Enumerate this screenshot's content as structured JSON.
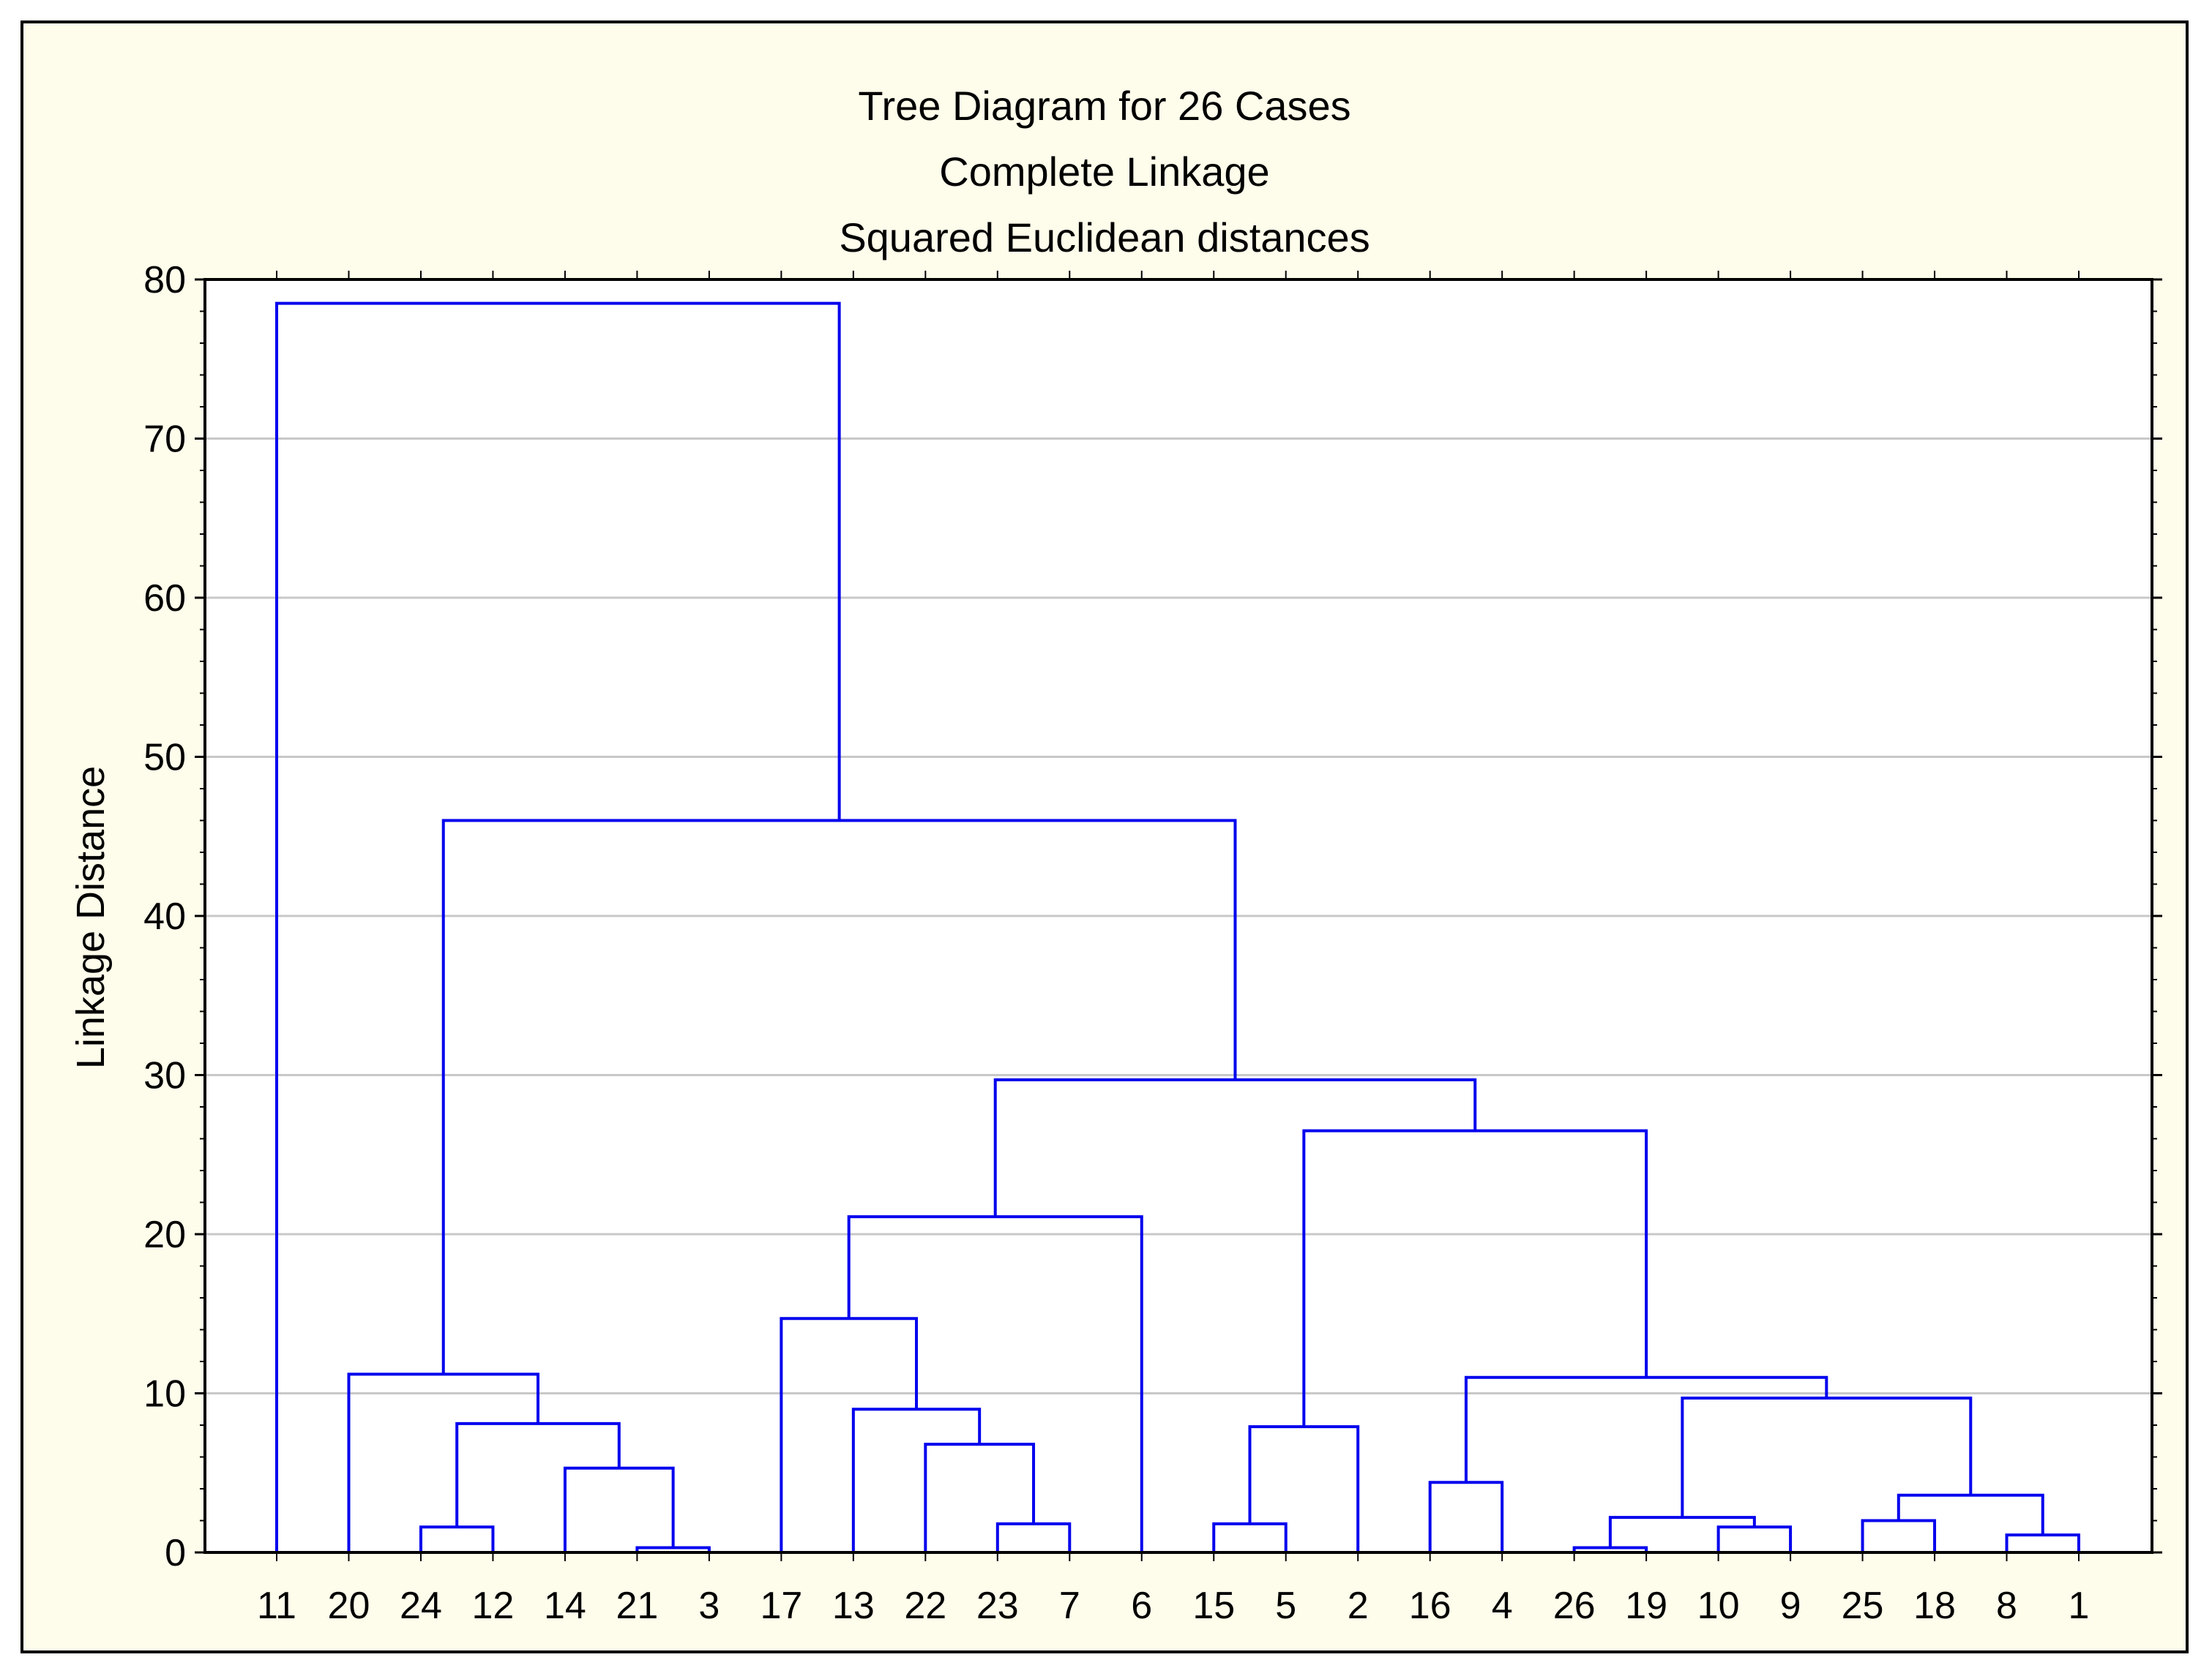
{
  "chart_data": {
    "type": "dendrogram",
    "title": "Tree Diagram for 26 Cases",
    "subtitle_lines": [
      "Complete Linkage",
      "Squared Euclidean distances"
    ],
    "ylabel": "Linkage Distance",
    "xlabel": "",
    "ylim": [
      0,
      80
    ],
    "yticks": [
      0,
      10,
      20,
      30,
      40,
      50,
      60,
      70,
      80
    ],
    "grid": true,
    "leaves": [
      "11",
      "20",
      "24",
      "12",
      "14",
      "21",
      "3",
      "17",
      "13",
      "22",
      "23",
      "7",
      "6",
      "15",
      "5",
      "2",
      "16",
      "4",
      "26",
      "19",
      "10",
      "9",
      "25",
      "18",
      "8",
      "1"
    ],
    "merges": [
      {
        "left": "21",
        "right": "3",
        "height": 0.3
      },
      {
        "left": "26",
        "right": "19",
        "height": 0.3
      },
      {
        "left": "8",
        "right": "1",
        "height": 1.1
      },
      {
        "left": "24",
        "right": "12",
        "height": 1.6
      },
      {
        "left": "10",
        "right": "9",
        "height": 1.6
      },
      {
        "left": "23",
        "right": "7",
        "height": 1.8
      },
      {
        "left": "15",
        "right": "5",
        "height": 1.8
      },
      {
        "left": "25",
        "right": "18",
        "height": 2.0
      },
      {
        "left": "(26,19)",
        "right": "(10,9)",
        "height": 2.2
      },
      {
        "left": "(25,18)",
        "right": "(8,1)",
        "height": 3.6
      },
      {
        "left": "16",
        "right": "4",
        "height": 4.4
      },
      {
        "left": "14",
        "right": "(21,3)",
        "height": 5.3
      },
      {
        "left": "22",
        "right": "(23,7)",
        "height": 6.8
      },
      {
        "left": "(15,5)",
        "right": "2",
        "height": 7.9
      },
      {
        "left": "(24,12)",
        "right": "(14,21,3)",
        "height": 8.1
      },
      {
        "left": "13",
        "right": "(22,23,7)",
        "height": 9.0
      },
      {
        "left": "(26,19,10,9)",
        "right": "(25,18,8,1)",
        "height": 9.7
      },
      {
        "left": "(16,4)",
        "right": "(26,19,10,9,25,18,8,1)",
        "height": 11.0
      },
      {
        "left": "20",
        "right": "(24,12,14,21,3)",
        "height": 11.2
      },
      {
        "left": "17",
        "right": "(13,22,23,7)",
        "height": 14.7
      },
      {
        "left": "(17,13,22,23,7)",
        "right": "6",
        "height": 21.1
      },
      {
        "left": "(15,5,2)",
        "right": "(16,4,26,19,10,9,25,18,8,1)",
        "height": 26.5
      },
      {
        "left": "(17,13,22,23,7,6)",
        "right": "(15,5,2,16,4,...)",
        "height": 29.7
      },
      {
        "left": "(20,24,12,14,21,3)",
        "right": "(17,...,1)",
        "height": 46.0
      },
      {
        "left": "11",
        "right": "(20,...,1)",
        "height": 78.5
      }
    ],
    "line_color": "#0000ee",
    "grid_color": "#c8c8c8",
    "background_color": "#fefcea",
    "plot_background": "#ffffff"
  }
}
